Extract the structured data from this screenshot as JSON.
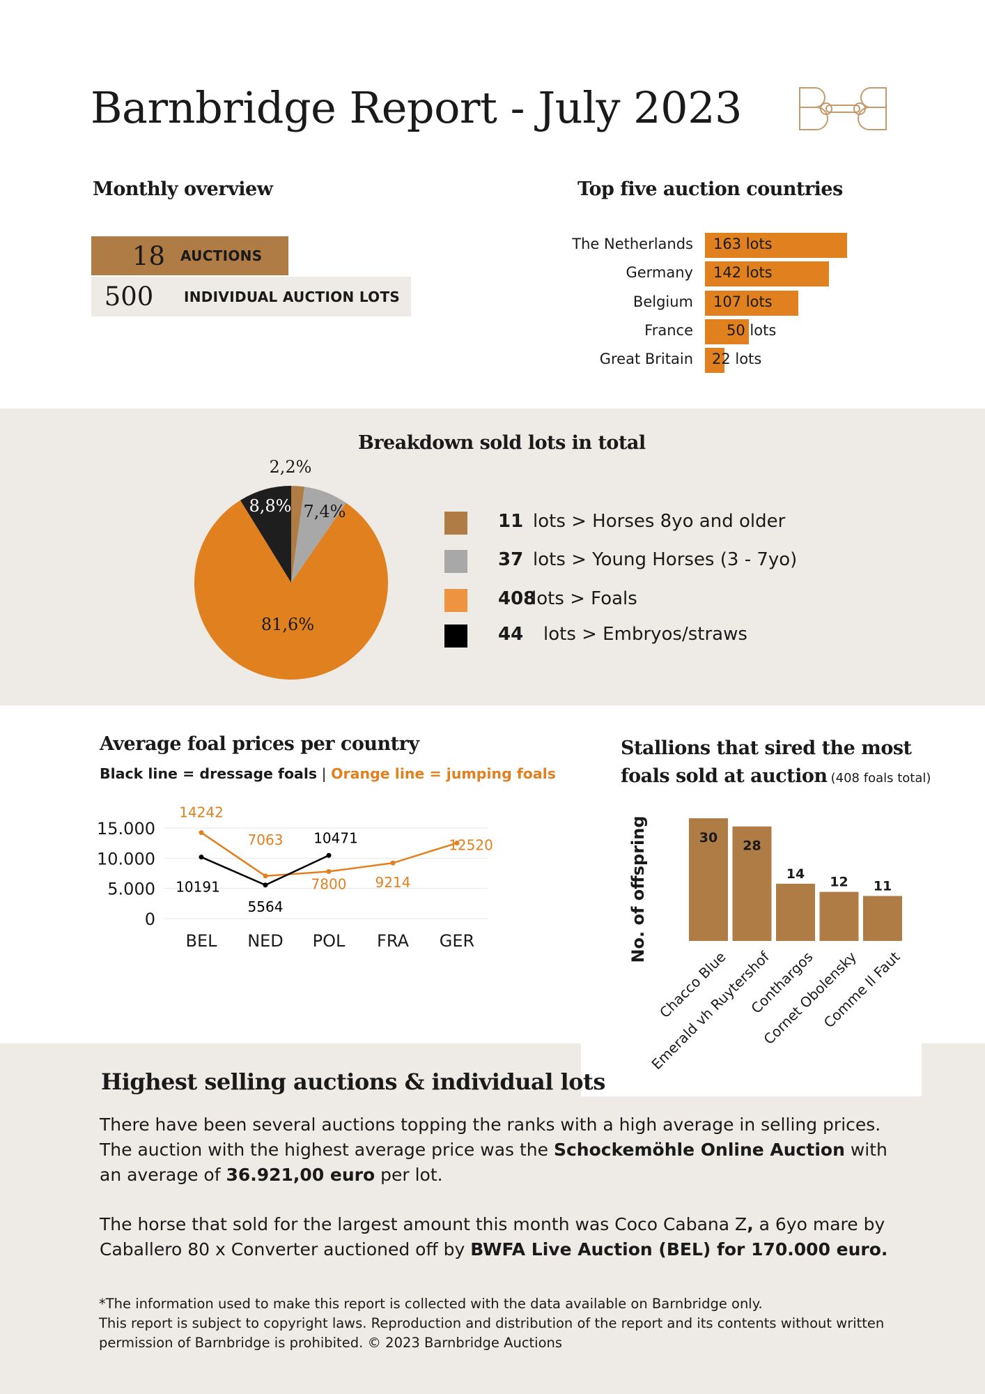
{
  "header": {
    "title": "Barnbridge Report - July 2023",
    "logo_text": "BB"
  },
  "overview": {
    "heading": "Monthly overview",
    "rows": [
      {
        "value": "18",
        "label": "AUCTIONS"
      },
      {
        "value": "500",
        "label": "INDIVIDUAL AUCTION LOTS"
      }
    ]
  },
  "countries": {
    "heading": "Top five auction countries",
    "items": [
      {
        "name": "The Netherlands",
        "label": "163 lots",
        "value": 163
      },
      {
        "name": "Germany",
        "label": "142 lots",
        "value": 142
      },
      {
        "name": "Belgium",
        "label": "107 lots",
        "value": 107
      },
      {
        "name": "France",
        "label": "50 lots",
        "value": 50
      },
      {
        "name": "Great Britain",
        "label": "22 lots",
        "value": 22
      }
    ]
  },
  "breakdown": {
    "heading": "Breakdown sold lots in total",
    "legend": [
      {
        "count": "11",
        "text": "lots > Horses 8yo and older",
        "color": "#b07c45"
      },
      {
        "count": "37",
        "text": "lots > Young Horses (3 - 7yo)",
        "color": "#a8a8a8"
      },
      {
        "count": "408",
        "text": "lots > Foals",
        "color": "#ee9440"
      },
      {
        "count": "44",
        "text": "lots > Embryos/straws",
        "color": "#000000"
      }
    ]
  },
  "foal_prices": {
    "heading": "Average foal prices per country",
    "subtitle_black": "Black line = dressage foals",
    "subtitle_sep": "|",
    "subtitle_orange": "Orange line = jumping foals"
  },
  "stallions": {
    "heading_line1": "Stallions that sired the most",
    "heading_line2": "foals sold at auction",
    "heading_note": "(408 foals total)"
  },
  "highlights": {
    "heading": "Highest selling auctions & individual lots",
    "p1_a": "There have been several auctions topping the ranks with a high average in selling prices. The auction with the highest average price was the ",
    "p1_b": "Schockemöhle Online Auction",
    "p1_c": " with an average of ",
    "p1_d": "36.921,00 euro",
    "p1_e": " per lot.",
    "p2_a": "The horse that sold for the largest amount this month was Coco Cabana Z",
    "p2_b": ",",
    "p2_c": " a 6yo mare by Caballero 80 x Converter auctioned off by ",
    "p2_d": "BWFA Live Auction (BEL) for 170.000 euro.",
    "footer_1": "*The information used to make this report is collected with the data available on Barnbridge only.",
    "footer_2": "This report is subject to copyright laws. Reproduction and distribution of the report and its contents without written permission of Barnbridge is prohibited. © 2023 Barnbridge Auctions"
  },
  "colors": {
    "brown": "#b07c45",
    "orange": "#e0801f",
    "band": "#eeebe6",
    "gray": "#a8a8a8"
  },
  "chart_data": [
    {
      "type": "pie",
      "title": "Breakdown sold lots in total",
      "categories": [
        "Horses 8yo and older",
        "Young Horses (3 - 7yo)",
        "Foals",
        "Embryos/straws"
      ],
      "values": [
        2.2,
        7.4,
        81.6,
        8.8
      ],
      "labels": [
        "2,2%",
        "7,4%",
        "81,6%",
        "8,8%"
      ],
      "colors": [
        "#b07c45",
        "#a8a8a8",
        "#e0801f",
        "#1e1e1e"
      ]
    },
    {
      "type": "line",
      "title": "Average foal prices per country",
      "categories": [
        "BEL",
        "NED",
        "POL",
        "FRA",
        "GER"
      ],
      "yticks": [
        "15.000",
        "10.000",
        "5.000",
        "0"
      ],
      "ytick_values": [
        15000,
        10000,
        5000,
        0
      ],
      "ylim": [
        0,
        15000
      ],
      "series": [
        {
          "name": "dressage foals",
          "color": "#000000",
          "values": [
            10191,
            5564,
            10471,
            null,
            null
          ],
          "labels": [
            "10191",
            "5564",
            "10471",
            null,
            null
          ]
        },
        {
          "name": "jumping foals",
          "color": "#e0801f",
          "values": [
            14242,
            7063,
            7800,
            9214,
            12520
          ],
          "labels": [
            "14242",
            "7063",
            "7800",
            "9214",
            "12520"
          ]
        }
      ]
    },
    {
      "type": "bar",
      "title": "Stallions that sired the most foals sold at auction",
      "ylabel": "No. of offspring",
      "categories": [
        "Chacco Blue",
        "Emerald vh Ruytershof",
        "Conthargos",
        "Cornet Obolensky",
        "Comme Il Faut"
      ],
      "values": [
        30,
        28,
        14,
        12,
        11
      ],
      "labels": [
        "30",
        "28",
        "14",
        "12",
        "11"
      ],
      "ylim": [
        0,
        30
      ],
      "color": "#b07c45"
    }
  ]
}
